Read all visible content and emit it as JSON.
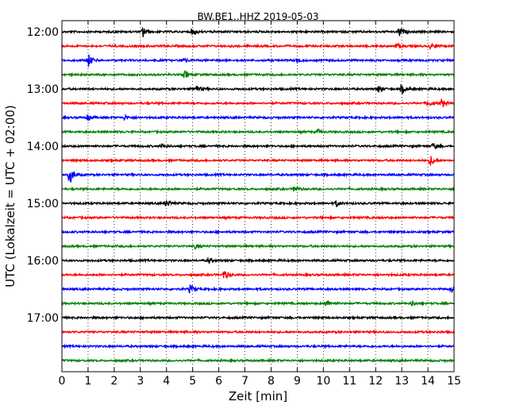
{
  "chart_data": {
    "type": "line",
    "title": "BW.BE1..HHZ 2019-05-03",
    "xlabel": "Zeit  [min]",
    "ylabel": "UTC (Lokalzeit = UTC + 02:00)",
    "xlim": [
      0,
      15
    ],
    "x_ticks": [
      "0",
      "1",
      "2",
      "3",
      "4",
      "5",
      "6",
      "7",
      "8",
      "9",
      "10",
      "11",
      "12",
      "13",
      "14",
      "15"
    ],
    "y_tick_labels": [
      "12:00",
      "13:00",
      "14:00",
      "15:00",
      "16:00",
      "17:00"
    ],
    "grid": "vertical dotted",
    "trace_colors": [
      "#000000",
      "#ff0000",
      "#0000ff",
      "#008000"
    ],
    "traces": [
      {
        "start": "12:00",
        "events": [
          {
            "t": 3.1,
            "amp": 7
          },
          {
            "t": 5.0,
            "amp": 5
          },
          {
            "t": 12.9,
            "amp": 7
          }
        ]
      },
      {
        "start": "12:15",
        "events": [
          {
            "t": 12.8,
            "amp": 3
          },
          {
            "t": 14.1,
            "amp": 3
          }
        ]
      },
      {
        "start": "12:30",
        "events": [
          {
            "t": 1.0,
            "amp": 9
          },
          {
            "t": 4.6,
            "amp": 4
          },
          {
            "t": 9.0,
            "amp": 3
          }
        ]
      },
      {
        "start": "12:45",
        "events": [
          {
            "t": 4.7,
            "amp": 5
          }
        ]
      },
      {
        "start": "13:00",
        "events": [
          {
            "t": 5.1,
            "amp": 6
          },
          {
            "t": 12.1,
            "amp": 4
          },
          {
            "t": 13.0,
            "amp": 6
          }
        ]
      },
      {
        "start": "13:15",
        "events": [
          {
            "t": 14.0,
            "amp": 4
          },
          {
            "t": 14.5,
            "amp": 6
          }
        ]
      },
      {
        "start": "13:30",
        "events": [
          {
            "t": 1.0,
            "amp": 4
          },
          {
            "t": 2.4,
            "amp": 3
          }
        ]
      },
      {
        "start": "13:45",
        "events": [
          {
            "t": 9.8,
            "amp": 3
          }
        ]
      },
      {
        "start": "14:00",
        "events": [
          {
            "t": 3.8,
            "amp": 3
          },
          {
            "t": 14.2,
            "amp": 4
          }
        ]
      },
      {
        "start": "14:15",
        "events": [
          {
            "t": 14.1,
            "amp": 6
          }
        ]
      },
      {
        "start": "14:30",
        "events": [
          {
            "t": 0.3,
            "amp": 12
          }
        ]
      },
      {
        "start": "14:45",
        "events": [
          {
            "t": 8.9,
            "amp": 4
          }
        ]
      },
      {
        "start": "15:00",
        "events": [
          {
            "t": 4.0,
            "amp": 5
          },
          {
            "t": 10.5,
            "amp": 4
          }
        ]
      },
      {
        "start": "15:15",
        "events": []
      },
      {
        "start": "15:30",
        "events": []
      },
      {
        "start": "15:45",
        "events": [
          {
            "t": 5.1,
            "amp": 3
          }
        ]
      },
      {
        "start": "16:00",
        "events": [
          {
            "t": 5.6,
            "amp": 3
          }
        ]
      },
      {
        "start": "16:15",
        "events": [
          {
            "t": 6.2,
            "amp": 7
          }
        ]
      },
      {
        "start": "16:30",
        "events": [
          {
            "t": 4.9,
            "amp": 5
          },
          {
            "t": 14.9,
            "amp": 4
          }
        ]
      },
      {
        "start": "16:45",
        "events": [
          {
            "t": 10.1,
            "amp": 4
          },
          {
            "t": 13.4,
            "amp": 3
          }
        ]
      },
      {
        "start": "17:00",
        "events": []
      },
      {
        "start": "17:15",
        "events": []
      },
      {
        "start": "17:30",
        "events": []
      },
      {
        "start": "17:45",
        "events": []
      }
    ]
  }
}
